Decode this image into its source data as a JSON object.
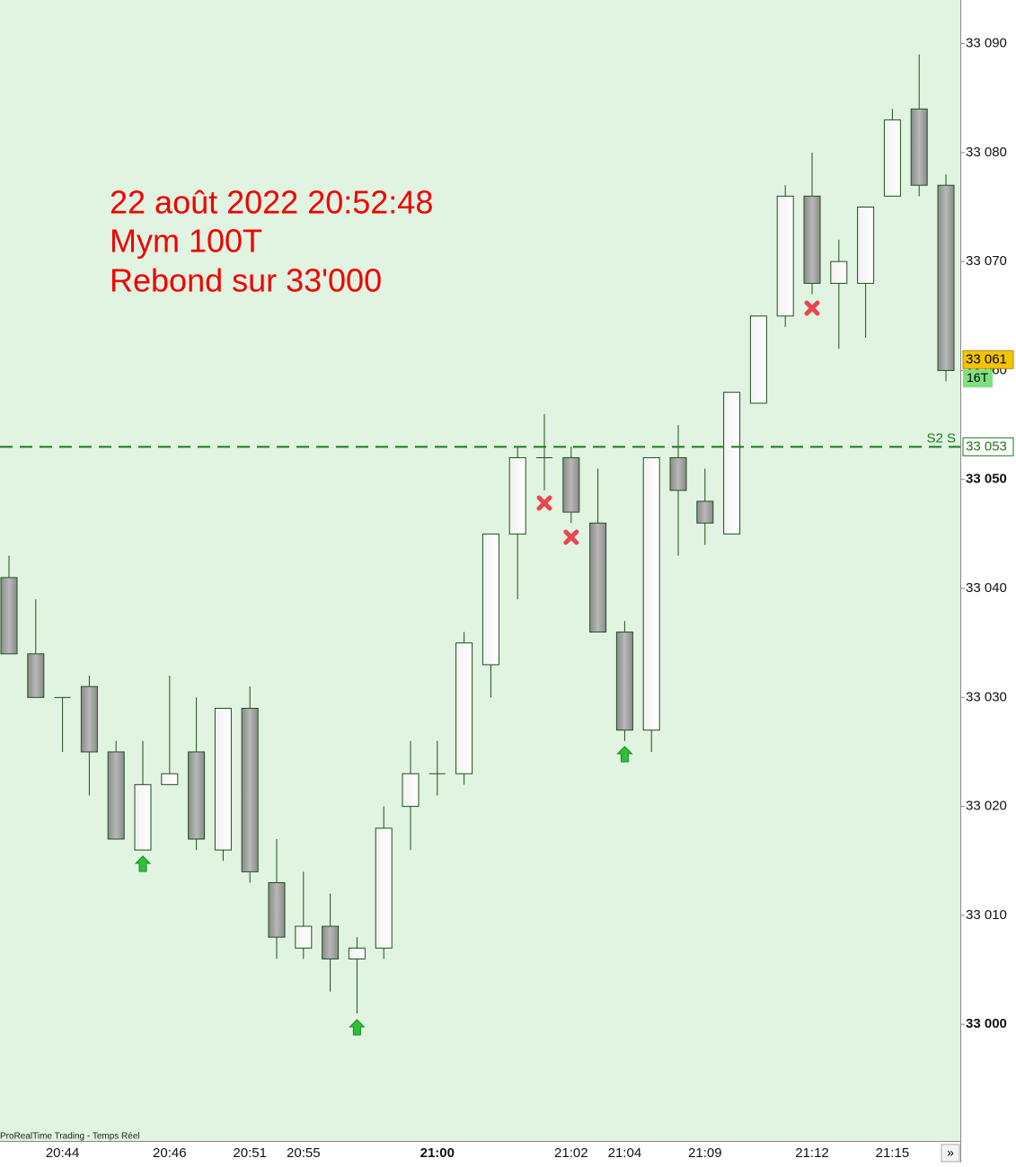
{
  "chart_data": {
    "type": "candlestick",
    "annotations": [
      "22 août 2022 20:52:48",
      "Mym 100T",
      "Rebond sur 33'000"
    ],
    "footer": "ProRealTime Trading - Temps Réel",
    "categories": [
      null,
      null,
      "20:44",
      null,
      null,
      null,
      "20:46",
      null,
      null,
      "20:51",
      null,
      "20:55",
      null,
      null,
      null,
      null,
      "21:00",
      null,
      null,
      null,
      null,
      "21:02",
      null,
      "21:04",
      null,
      null,
      "21:09",
      null,
      null,
      null,
      "21:12",
      null,
      null,
      "21:15",
      null,
      null
    ],
    "open": [
      33041,
      33034,
      33030,
      33031,
      33025,
      33016,
      33022,
      33025,
      33016,
      33029,
      33013,
      33007,
      33009,
      33006,
      33007,
      33020,
      33023,
      33023,
      33033,
      33045,
      33052,
      33052,
      33046,
      33036,
      33027,
      33052,
      33048,
      33045,
      33057,
      33065,
      33076,
      33068,
      33068,
      33076,
      33084,
      33077
    ],
    "high": [
      33043,
      33039,
      33030,
      33032,
      33026,
      33026,
      33032,
      33030,
      33029,
      33031,
      33017,
      33014,
      33012,
      33008,
      33020,
      33026,
      33026,
      33036,
      33045,
      33053,
      33056,
      33053,
      33051,
      33037,
      33052,
      33055,
      33051,
      33058,
      33065,
      33077,
      33080,
      33072,
      33075,
      33084,
      33089,
      33078
    ],
    "low": [
      33034,
      33030,
      33025,
      33021,
      33017,
      33016,
      33022,
      33016,
      33015,
      33013,
      33006,
      33006,
      33003,
      33001,
      33006,
      33016,
      33021,
      33022,
      33030,
      33039,
      33049,
      33046,
      33036,
      33026,
      33025,
      33043,
      33044,
      33045,
      33057,
      33064,
      33067,
      33062,
      33063,
      33076,
      33076,
      33059
    ],
    "close": [
      33034,
      33030,
      33030,
      33025,
      33017,
      33022,
      33023,
      33017,
      33029,
      33014,
      33008,
      33009,
      33006,
      33007,
      33018,
      33023,
      33023,
      33035,
      33045,
      33052,
      33052,
      33047,
      33036,
      33027,
      33052,
      33049,
      33046,
      33058,
      33065,
      33076,
      33068,
      33070,
      33075,
      33083,
      33077,
      33060
    ],
    "ylim": [
      32989.3,
      33094
    ],
    "yticks": [
      {
        "value": 33000,
        "label": "33 000",
        "bold": true
      },
      {
        "value": 33010,
        "label": "33 010"
      },
      {
        "value": 33020,
        "label": "33 020"
      },
      {
        "value": 33030,
        "label": "33 030"
      },
      {
        "value": 33040,
        "label": "33 040"
      },
      {
        "value": 33050,
        "label": "33 050",
        "bold": true
      },
      {
        "value": 33060,
        "label": "33 060"
      },
      {
        "value": 33070,
        "label": "33 070"
      },
      {
        "value": 33080,
        "label": "33 080"
      },
      {
        "value": 33090,
        "label": "33 090"
      }
    ],
    "level": {
      "value": 33053,
      "label": "33 053",
      "name": "S2 S",
      "color": "#1e7a1e"
    },
    "last_price": {
      "value": 33061,
      "label": "33 061",
      "sub": "16T"
    },
    "background": "#e1f3e1"
  }
}
